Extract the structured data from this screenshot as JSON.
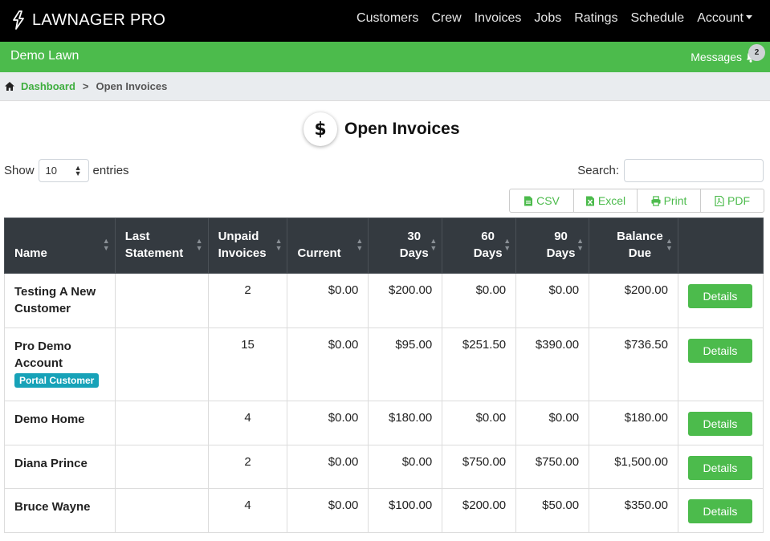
{
  "app": {
    "brand": "LAWNAGER PRO"
  },
  "nav": {
    "items": [
      "Customers",
      "Crew",
      "Invoices",
      "Jobs",
      "Ratings",
      "Schedule",
      "Account"
    ]
  },
  "account_bar": {
    "company": "Demo Lawn",
    "messages_label": "Messages",
    "messages_count": "2"
  },
  "breadcrumb": {
    "home": "Dashboard",
    "separator": ">",
    "current": "Open Invoices"
  },
  "page": {
    "title": "Open Invoices",
    "title_icon": "$"
  },
  "controls": {
    "show_label": "Show",
    "entries_value": "10",
    "entries_label": "entries",
    "search_label": "Search:",
    "search_value": ""
  },
  "export_buttons": [
    "CSV",
    "Excel",
    "Print",
    "PDF"
  ],
  "table": {
    "headers": [
      "Name",
      "Last Statement",
      "Unpaid Invoices",
      "Current",
      "30 Days",
      "60 Days",
      "90 Days",
      "Balance Due",
      ""
    ],
    "rows": [
      {
        "name": "Testing A New Customer",
        "badge": "",
        "last_statement": "",
        "unpaid": "2",
        "current": "$0.00",
        "d30": "$200.00",
        "d60": "$0.00",
        "d90": "$0.00",
        "balance": "$200.00",
        "action": "Details"
      },
      {
        "name": "Pro Demo Account",
        "badge": "Portal Customer",
        "last_statement": "",
        "unpaid": "15",
        "current": "$0.00",
        "d30": "$95.00",
        "d60": "$251.50",
        "d90": "$390.00",
        "balance": "$736.50",
        "action": "Details"
      },
      {
        "name": "Demo Home",
        "badge": "",
        "last_statement": "",
        "unpaid": "4",
        "current": "$0.00",
        "d30": "$180.00",
        "d60": "$0.00",
        "d90": "$0.00",
        "balance": "$180.00",
        "action": "Details"
      },
      {
        "name": "Diana Prince",
        "badge": "",
        "last_statement": "",
        "unpaid": "2",
        "current": "$0.00",
        "d30": "$0.00",
        "d60": "$750.00",
        "d90": "$750.00",
        "balance": "$1,500.00",
        "action": "Details"
      },
      {
        "name": "Bruce Wayne",
        "badge": "",
        "last_statement": "",
        "unpaid": "4",
        "current": "$0.00",
        "d30": "$100.00",
        "d60": "$200.00",
        "d90": "$50.00",
        "balance": "$350.00",
        "action": "Details"
      }
    ]
  },
  "colors": {
    "green": "#4cbb4c",
    "dark_header": "#343a40",
    "badge_teal": "#17a2b8",
    "muted_zero": "#9a9a9a"
  },
  "icons": [
    "logo-bolt-icon",
    "bell-icon",
    "home-icon",
    "dollar-icon",
    "csv-file-icon",
    "excel-file-icon",
    "print-icon",
    "pdf-file-icon",
    "sort-icon",
    "updown-icon"
  ]
}
